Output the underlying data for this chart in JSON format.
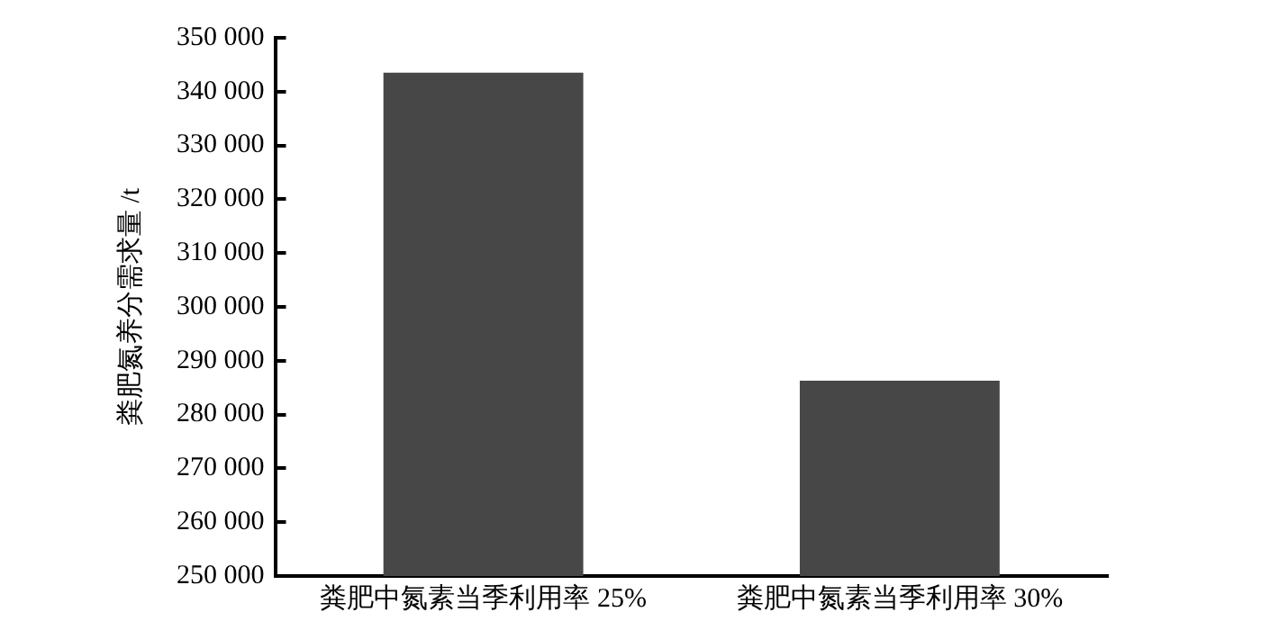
{
  "chart_data": {
    "type": "bar",
    "ylabel": "粪肥氮养分需求量 /t",
    "categories": [
      "粪肥中氮素当季利用率 25%",
      "粪肥中氮素当季利用率 30%"
    ],
    "values": [
      343500,
      286300
    ],
    "color": "#474747",
    "ylim": [
      250000,
      350000
    ],
    "yticks": [
      {
        "value": 250000,
        "label": "250 000"
      },
      {
        "value": 260000,
        "label": "260 000"
      },
      {
        "value": 270000,
        "label": "270 000"
      },
      {
        "value": 280000,
        "label": "280 000"
      },
      {
        "value": 290000,
        "label": "290 000"
      },
      {
        "value": 300000,
        "label": "300 000"
      },
      {
        "value": 310000,
        "label": "310 000"
      },
      {
        "value": 320000,
        "label": "320 000"
      },
      {
        "value": 330000,
        "label": "330 000"
      },
      {
        "value": 340000,
        "label": "340 000"
      },
      {
        "value": 350000,
        "label": "350 000"
      }
    ],
    "grid": false,
    "legend": false
  }
}
